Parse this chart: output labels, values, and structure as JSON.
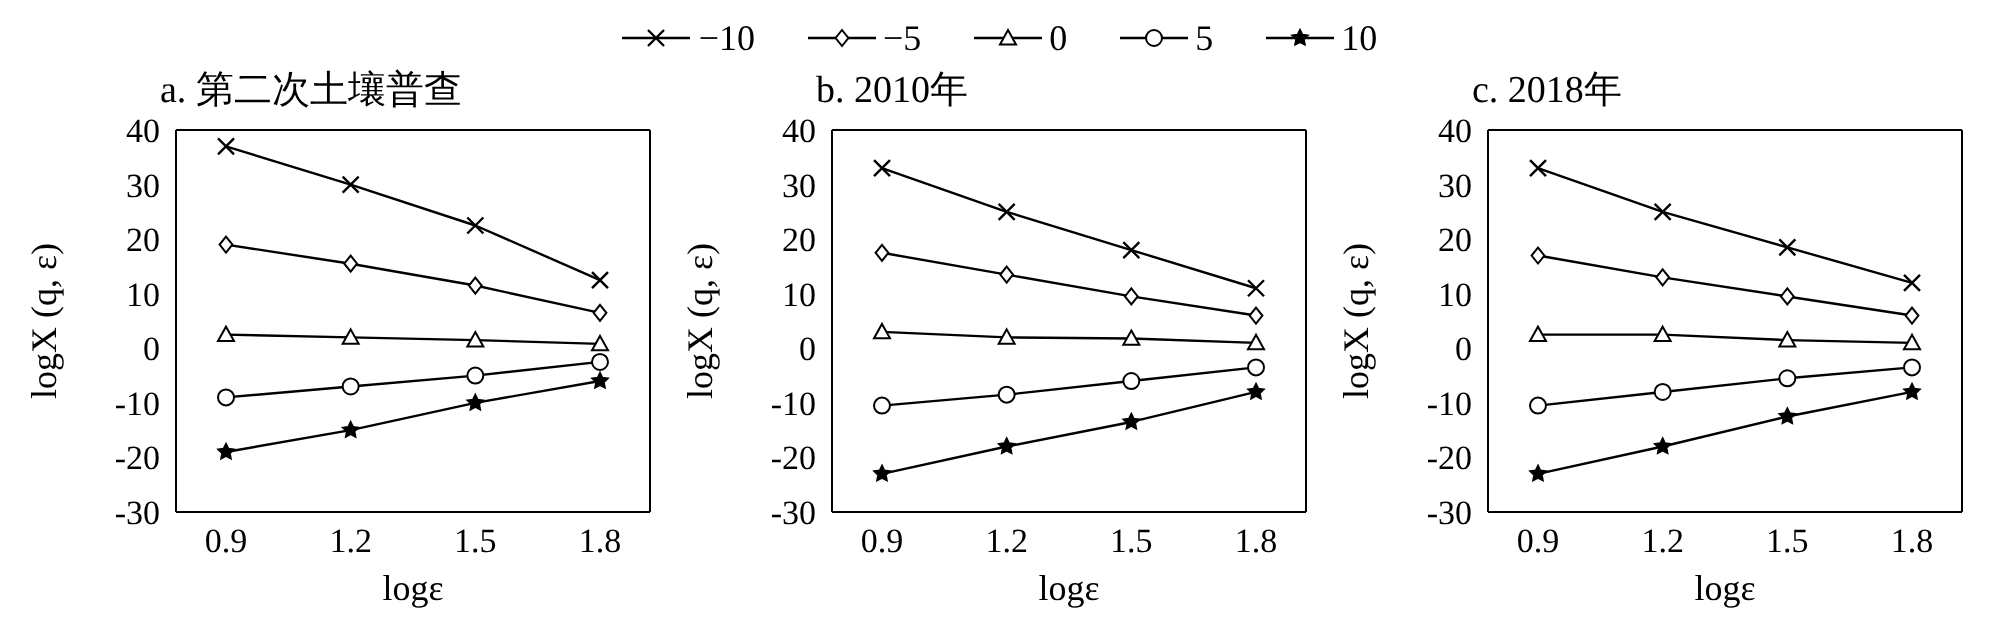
{
  "chart_data": [
    {
      "type": "line",
      "title": "a. 第二次土壤普查",
      "xlabel": "logε",
      "ylabel": "logX (q, ε)",
      "categories": [
        "0.9",
        "1.2",
        "1.5",
        "1.8"
      ],
      "ylim": [
        -30,
        40
      ],
      "yticks": [
        -30,
        -20,
        -10,
        0,
        10,
        20,
        30,
        40
      ],
      "grid": false,
      "legend": "top",
      "line_style": "solid",
      "series": [
        {
          "name": "−10",
          "color": "#000000",
          "marker": "cross",
          "values": [
            37,
            30,
            22.5,
            12.5
          ]
        },
        {
          "name": "−5",
          "color": "#000000",
          "marker": "diamond",
          "values": [
            19,
            15.5,
            11.5,
            6.5
          ]
        },
        {
          "name": "0",
          "color": "#000000",
          "marker": "triangle",
          "values": [
            2.5,
            2,
            1.5,
            0.8
          ]
        },
        {
          "name": "5",
          "color": "#000000",
          "marker": "circle",
          "values": [
            -9,
            -7,
            -5,
            -2.5
          ]
        },
        {
          "name": "10",
          "color": "#000000",
          "marker": "star",
          "values": [
            -19,
            -15,
            -10,
            -6
          ]
        }
      ]
    },
    {
      "type": "line",
      "title": "b. 2010年",
      "xlabel": "logε",
      "ylabel": "logX (q, ε)",
      "categories": [
        "0.9",
        "1.2",
        "1.5",
        "1.8"
      ],
      "ylim": [
        -30,
        40
      ],
      "yticks": [
        -30,
        -20,
        -10,
        0,
        10,
        20,
        30,
        40
      ],
      "grid": false,
      "line_style": "solid",
      "series": [
        {
          "color": "#000000",
          "marker": "cross",
          "values": [
            33,
            25,
            18,
            11
          ]
        },
        {
          "color": "#000000",
          "marker": "diamond",
          "values": [
            17.5,
            13.5,
            9.5,
            6
          ]
        },
        {
          "color": "#000000",
          "marker": "triangle",
          "values": [
            3,
            2,
            1.8,
            1
          ]
        },
        {
          "color": "#000000",
          "marker": "circle",
          "values": [
            -10.5,
            -8.5,
            -6,
            -3.5
          ]
        },
        {
          "color": "#000000",
          "marker": "star",
          "values": [
            -23,
            -18,
            -13.5,
            -8
          ]
        }
      ]
    },
    {
      "type": "line",
      "title": "c. 2018年",
      "xlabel": "logε",
      "ylabel": "logX (q, ε)",
      "categories": [
        "0.9",
        "1.2",
        "1.5",
        "1.8"
      ],
      "ylim": [
        -30,
        40
      ],
      "yticks": [
        -30,
        -20,
        -10,
        0,
        10,
        20,
        30,
        40
      ],
      "grid": false,
      "line_style": "solid",
      "series": [
        {
          "color": "#000000",
          "marker": "cross",
          "values": [
            33,
            25,
            18.5,
            12
          ]
        },
        {
          "color": "#000000",
          "marker": "diamond",
          "values": [
            17,
            13,
            9.5,
            6
          ]
        },
        {
          "color": "#000000",
          "marker": "triangle",
          "values": [
            2.5,
            2.5,
            1.5,
            1
          ]
        },
        {
          "color": "#000000",
          "marker": "circle",
          "values": [
            -10.5,
            -8,
            -5.5,
            -3.5
          ]
        },
        {
          "color": "#000000",
          "marker": "star",
          "values": [
            -23,
            -18,
            -12.5,
            -8
          ]
        }
      ]
    }
  ]
}
